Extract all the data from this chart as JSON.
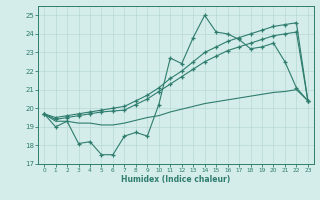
{
  "xlabel": "Humidex (Indice chaleur)",
  "x": [
    0,
    1,
    2,
    3,
    4,
    5,
    6,
    7,
    8,
    9,
    10,
    11,
    12,
    13,
    14,
    15,
    16,
    17,
    18,
    19,
    20,
    21,
    22,
    23
  ],
  "line_main": [
    19.7,
    19.0,
    19.3,
    18.1,
    18.2,
    17.5,
    17.5,
    18.5,
    18.7,
    18.5,
    20.2,
    22.7,
    22.4,
    23.8,
    25.0,
    24.1,
    24.0,
    23.7,
    23.2,
    23.3,
    23.5,
    22.5,
    21.1,
    20.4
  ],
  "line_upper1": [
    19.7,
    19.5,
    19.6,
    19.7,
    19.8,
    19.9,
    20.0,
    20.1,
    20.4,
    20.7,
    21.1,
    21.6,
    22.0,
    22.5,
    23.0,
    23.3,
    23.6,
    23.8,
    24.0,
    24.2,
    24.4,
    24.5,
    24.6,
    20.4
  ],
  "line_upper2": [
    19.7,
    19.4,
    19.5,
    19.6,
    19.7,
    19.8,
    19.85,
    19.9,
    20.2,
    20.5,
    20.9,
    21.3,
    21.7,
    22.1,
    22.5,
    22.8,
    23.1,
    23.3,
    23.5,
    23.7,
    23.9,
    24.0,
    24.1,
    20.4
  ],
  "line_lower": [
    19.7,
    19.3,
    19.3,
    19.2,
    19.2,
    19.1,
    19.1,
    19.2,
    19.35,
    19.5,
    19.6,
    19.8,
    19.95,
    20.1,
    20.25,
    20.35,
    20.45,
    20.55,
    20.65,
    20.75,
    20.85,
    20.9,
    21.0,
    20.4
  ],
  "color": "#2e7d6e",
  "bg_color": "#d4ecea",
  "grid_color": "#b8d8d4",
  "ylim": [
    17,
    25.5
  ],
  "yticks": [
    17,
    18,
    19,
    20,
    21,
    22,
    23,
    24,
    25
  ],
  "xlim": [
    -0.5,
    23.5
  ]
}
